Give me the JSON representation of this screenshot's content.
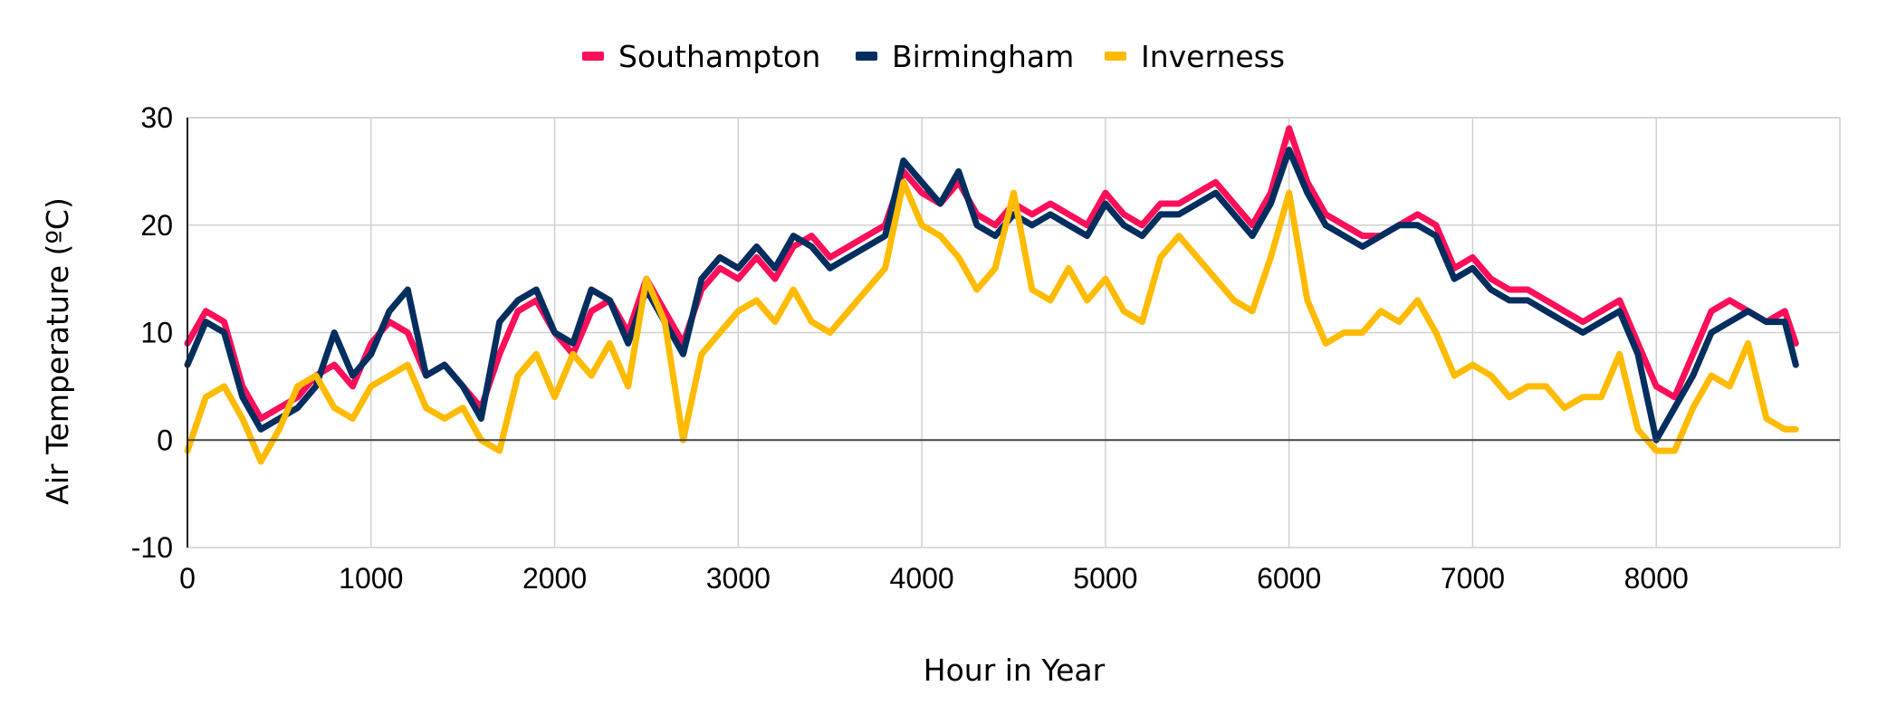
{
  "chart_data": {
    "type": "line",
    "title": "",
    "xlabel": "Hour in Year",
    "ylabel": "Air Temperature (ºC)",
    "xlim": [
      0,
      9000
    ],
    "ylim": [
      -10,
      30
    ],
    "x_ticks": [
      0,
      1000,
      2000,
      3000,
      4000,
      5000,
      6000,
      7000,
      8000
    ],
    "y_ticks": [
      -10,
      0,
      10,
      20,
      30
    ],
    "x_tick_labels": [
      "0",
      "1000",
      "2000",
      "3000",
      "4000",
      "5000",
      "6000",
      "7000",
      "8000"
    ],
    "y_tick_labels": [
      "-10",
      "0",
      "10",
      "20",
      "30"
    ],
    "grid": true,
    "legend_position": "top",
    "series": [
      {
        "name": "Southampton",
        "color": "#FF0E5A",
        "x": [
          0,
          100,
          200,
          300,
          400,
          500,
          600,
          700,
          800,
          900,
          1000,
          1100,
          1200,
          1300,
          1400,
          1500,
          1600,
          1700,
          1800,
          1900,
          2000,
          2100,
          2200,
          2300,
          2400,
          2500,
          2600,
          2700,
          2800,
          2900,
          3000,
          3100,
          3200,
          3300,
          3400,
          3500,
          3600,
          3700,
          3800,
          3900,
          4000,
          4100,
          4200,
          4300,
          4400,
          4500,
          4600,
          4700,
          4800,
          4900,
          5000,
          5100,
          5200,
          5300,
          5400,
          5500,
          5600,
          5700,
          5800,
          5900,
          6000,
          6100,
          6200,
          6300,
          6400,
          6500,
          6600,
          6700,
          6800,
          6900,
          7000,
          7100,
          7200,
          7300,
          7400,
          7500,
          7600,
          7700,
          7800,
          7900,
          8000,
          8100,
          8200,
          8300,
          8400,
          8500,
          8600,
          8700,
          8760
        ],
        "y": [
          9,
          12,
          11,
          5,
          2,
          3,
          4,
          6,
          7,
          5,
          9,
          11,
          10,
          6,
          7,
          5,
          3,
          8,
          12,
          13,
          10,
          8,
          12,
          13,
          10,
          15,
          12,
          9,
          14,
          16,
          15,
          17,
          15,
          18,
          19,
          17,
          18,
          19,
          20,
          25,
          23,
          22,
          24,
          21,
          20,
          22,
          21,
          22,
          21,
          20,
          23,
          21,
          20,
          22,
          22,
          23,
          24,
          22,
          20,
          23,
          29,
          24,
          21,
          20,
          19,
          19,
          20,
          21,
          20,
          16,
          17,
          15,
          14,
          14,
          13,
          12,
          11,
          12,
          13,
          9,
          5,
          4,
          8,
          12,
          13,
          12,
          11,
          12,
          9
        ]
      },
      {
        "name": "Birmingham",
        "color": "#002E5E",
        "x": [
          0,
          100,
          200,
          300,
          400,
          500,
          600,
          700,
          800,
          900,
          1000,
          1100,
          1200,
          1300,
          1400,
          1500,
          1600,
          1700,
          1800,
          1900,
          2000,
          2100,
          2200,
          2300,
          2400,
          2500,
          2600,
          2700,
          2800,
          2900,
          3000,
          3100,
          3200,
          3300,
          3400,
          3500,
          3600,
          3700,
          3800,
          3900,
          4000,
          4100,
          4200,
          4300,
          4400,
          4500,
          4600,
          4700,
          4800,
          4900,
          5000,
          5100,
          5200,
          5300,
          5400,
          5500,
          5600,
          5700,
          5800,
          5900,
          6000,
          6100,
          6200,
          6300,
          6400,
          6500,
          6600,
          6700,
          6800,
          6900,
          7000,
          7100,
          7200,
          7300,
          7400,
          7500,
          7600,
          7700,
          7800,
          7900,
          8000,
          8100,
          8200,
          8300,
          8400,
          8500,
          8600,
          8700,
          8760
        ],
        "y": [
          7,
          11,
          10,
          4,
          1,
          2,
          3,
          5,
          10,
          6,
          8,
          12,
          14,
          6,
          7,
          5,
          2,
          11,
          13,
          14,
          10,
          9,
          14,
          13,
          9,
          14,
          11,
          8,
          15,
          17,
          16,
          18,
          16,
          19,
          18,
          16,
          17,
          18,
          19,
          26,
          24,
          22,
          25,
          20,
          19,
          21,
          20,
          21,
          20,
          19,
          22,
          20,
          19,
          21,
          21,
          22,
          23,
          21,
          19,
          22,
          27,
          23,
          20,
          19,
          18,
          19,
          20,
          20,
          19,
          15,
          16,
          14,
          13,
          13,
          12,
          11,
          10,
          11,
          12,
          8,
          0,
          3,
          6,
          10,
          11,
          12,
          11,
          11,
          7
        ]
      },
      {
        "name": "Inverness",
        "color": "#FFBB00",
        "x": [
          0,
          100,
          200,
          300,
          400,
          500,
          600,
          700,
          800,
          900,
          1000,
          1100,
          1200,
          1300,
          1400,
          1500,
          1600,
          1700,
          1800,
          1900,
          2000,
          2100,
          2200,
          2300,
          2400,
          2500,
          2600,
          2700,
          2800,
          2900,
          3000,
          3100,
          3200,
          3300,
          3400,
          3500,
          3600,
          3700,
          3800,
          3900,
          4000,
          4100,
          4200,
          4300,
          4400,
          4500,
          4600,
          4700,
          4800,
          4900,
          5000,
          5100,
          5200,
          5300,
          5400,
          5500,
          5600,
          5700,
          5800,
          5900,
          6000,
          6100,
          6200,
          6300,
          6400,
          6500,
          6600,
          6700,
          6800,
          6900,
          7000,
          7100,
          7200,
          7300,
          7400,
          7500,
          7600,
          7700,
          7800,
          7900,
          8000,
          8100,
          8200,
          8300,
          8400,
          8500,
          8600,
          8700,
          8760
        ],
        "y": [
          -1,
          4,
          5,
          2,
          -2,
          1,
          5,
          6,
          3,
          2,
          5,
          6,
          7,
          3,
          2,
          3,
          0,
          -1,
          6,
          8,
          4,
          8,
          6,
          9,
          5,
          15,
          11,
          0,
          8,
          10,
          12,
          13,
          11,
          14,
          11,
          10,
          12,
          14,
          16,
          24,
          20,
          19,
          17,
          14,
          16,
          23,
          14,
          13,
          16,
          13,
          15,
          12,
          11,
          17,
          19,
          17,
          15,
          13,
          12,
          17,
          23,
          13,
          9,
          10,
          10,
          12,
          11,
          13,
          10,
          6,
          7,
          6,
          4,
          5,
          5,
          3,
          4,
          4,
          8,
          1,
          -1,
          -1,
          3,
          6,
          5,
          9,
          2,
          1,
          1
        ]
      }
    ]
  }
}
